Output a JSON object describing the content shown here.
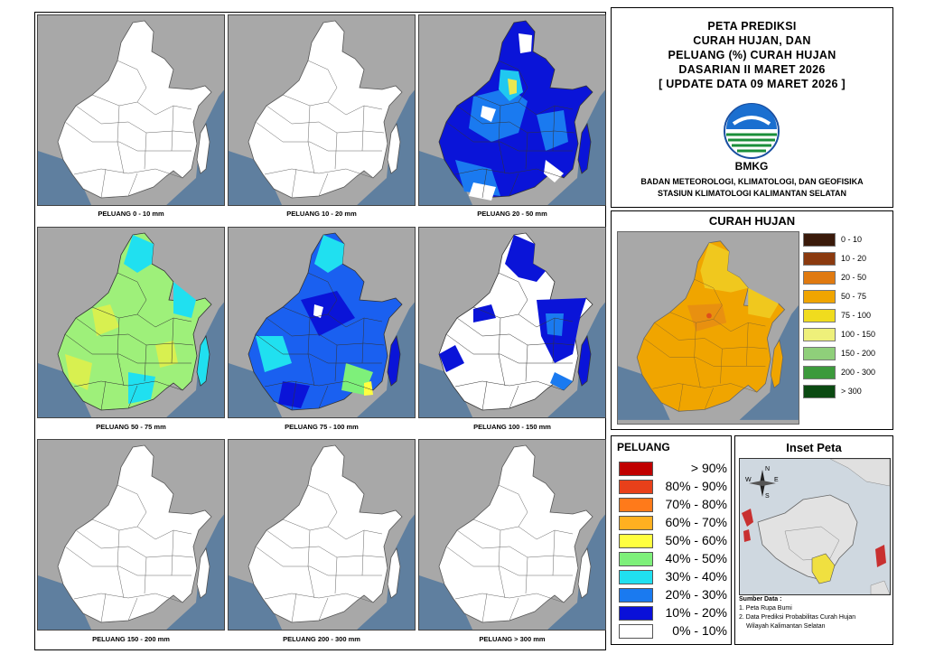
{
  "maps": [
    {
      "label": "PELUANG 0 - 10 mm",
      "fill": "white"
    },
    {
      "label": "PELUANG 10 - 20 mm",
      "fill": "white"
    },
    {
      "label": "PELUANG 20 - 50 mm",
      "fill": "blue-mixed"
    },
    {
      "label": "PELUANG 50 - 75 mm",
      "fill": "green-mixed"
    },
    {
      "label": "PELUANG 75 - 100 mm",
      "fill": "blue-cyan-mixed"
    },
    {
      "label": "PELUANG 100 - 150 mm",
      "fill": "white-blue-mixed"
    },
    {
      "label": "PELUANG 150 - 200 mm",
      "fill": "white"
    },
    {
      "label": "PELUANG 200 - 300 mm",
      "fill": "white"
    },
    {
      "label": "PELUANG > 300 mm",
      "fill": "white"
    }
  ],
  "title": {
    "line1": "PETA PREDIKSI",
    "line2": "CURAH HUJAN, DAN",
    "line3": "PELUANG (%) CURAH HUJAN",
    "line4": "DASARIAN II MARET 2026",
    "line5": "[ UPDATE DATA 09 MARET 2026 ]",
    "logo_text": "BMKG",
    "agency1": "BADAN METEOROLOGI, KLIMATOLOGI, DAN GEOFISIKA",
    "agency2": "STASIUN KLIMATOLOGI KALIMANTAN SELATAN"
  },
  "curah_hujan": {
    "title": "CURAH HUJAN",
    "legend": [
      {
        "label": "0 - 10",
        "color": "#3a1a0a"
      },
      {
        "label": "10 - 20",
        "color": "#8b3a0f"
      },
      {
        "label": "20 - 50",
        "color": "#e07a10"
      },
      {
        "label": "50 - 75",
        "color": "#f0a500"
      },
      {
        "label": "75 - 100",
        "color": "#f0dc1e"
      },
      {
        "label": "100 - 150",
        "color": "#eef07a"
      },
      {
        "label": "150 - 200",
        "color": "#8fcf7a"
      },
      {
        "label": "200 - 300",
        "color": "#3c9a3c"
      },
      {
        "label": "> 300",
        "color": "#0b4a12"
      }
    ]
  },
  "peluang": {
    "title": "PELUANG",
    "legend": [
      {
        "label": "> 90%",
        "color": "#c00000"
      },
      {
        "label": "80% - 90%",
        "color": "#e8401a"
      },
      {
        "label": "70% - 80%",
        "color": "#ff7a1a"
      },
      {
        "label": "60% - 70%",
        "color": "#ffb020"
      },
      {
        "label": "50% - 60%",
        "color": "#ffff40"
      },
      {
        "label": "40% - 50%",
        "color": "#7ef07a"
      },
      {
        "label": "30% - 40%",
        "color": "#20e0f0"
      },
      {
        "label": "20% - 30%",
        "color": "#1a7af0"
      },
      {
        "label": "10% - 20%",
        "color": "#0a10d8"
      },
      {
        "label": "0% - 10%",
        "color": "#ffffff"
      }
    ]
  },
  "inset": {
    "title": "Inset Peta",
    "compass_n": "N",
    "compass_s": "S",
    "compass_e": "E",
    "compass_w": "W",
    "source_title": "Sumber Data :",
    "source1": "1. Peta Rupa Bumi",
    "source2": "2. Data Prediksi Probabilitas Curah Hujan",
    "source3": "Wilayah Kalimantan Selatan"
  }
}
